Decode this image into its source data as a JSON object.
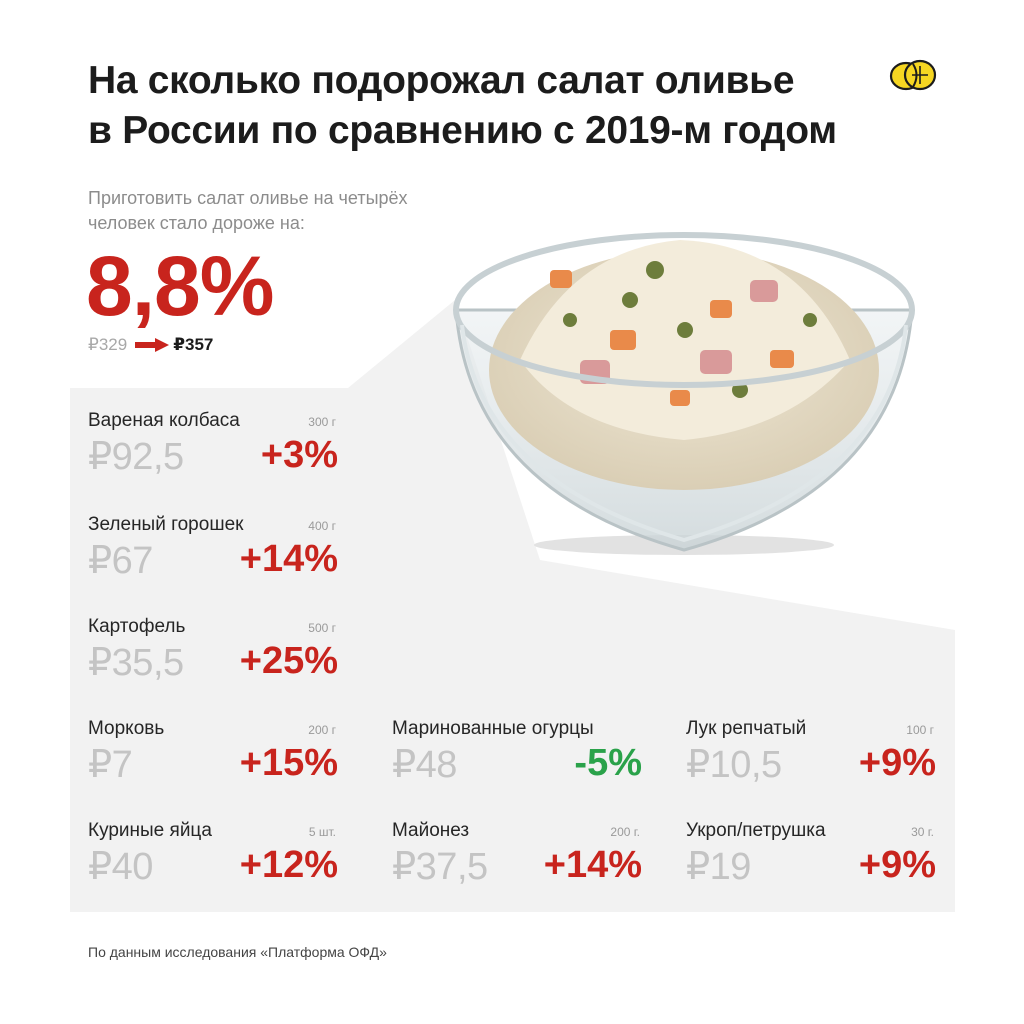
{
  "title": {
    "line1": "На сколько подорожал салат оливье",
    "line2": "в России по сравнению с 2019-м годом"
  },
  "logo_icon": "lemon-icon",
  "summary": {
    "subtitle": "Приготовить салат оливье на четырёх человек стало дороже на:",
    "percent": "8,8%",
    "old_price": "₽329",
    "new_price": "₽357"
  },
  "colors": {
    "accent_red": "#c8241d",
    "accent_green": "#2aa24a",
    "panel_gray": "#f2f2f2",
    "price_gray": "#c4c4c4"
  },
  "items": [
    {
      "name": "Вареная колбаса",
      "weight": "300 г",
      "price": "₽92,5",
      "change": "+3%",
      "direction": "up"
    },
    {
      "name": "Зеленый горошек",
      "weight": "400 г",
      "price": "₽67",
      "change": "+14%",
      "direction": "up"
    },
    {
      "name": "Картофель",
      "weight": "500 г",
      "price": "₽35,5",
      "change": "+25%",
      "direction": "up"
    },
    {
      "name": "Морковь",
      "weight": "200 г",
      "price": "₽7",
      "change": "+15%",
      "direction": "up"
    },
    {
      "name": "Маринованные огурцы",
      "weight": "",
      "price": "₽48",
      "change": "-5%",
      "direction": "down"
    },
    {
      "name": "Лук репчатый",
      "weight": "100 г",
      "price": "₽10,5",
      "change": "+9%",
      "direction": "up"
    },
    {
      "name": "Куриные яйца",
      "weight": "5 шт.",
      "price": "₽40",
      "change": "+12%",
      "direction": "up"
    },
    {
      "name": "Майонез",
      "weight": "200 г.",
      "price": "₽37,5",
      "change": "+14%",
      "direction": "up"
    },
    {
      "name": "Укроп/петрушка",
      "weight": "30 г.",
      "price": "₽19",
      "change": "+9%",
      "direction": "up"
    }
  ],
  "footer": "По данным исследования «Платформа ОФД»"
}
